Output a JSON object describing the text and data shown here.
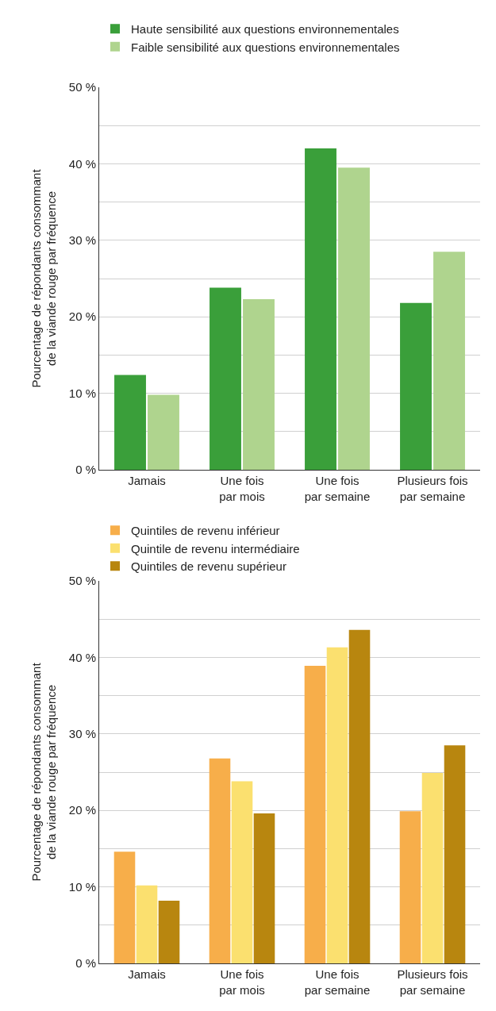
{
  "chart_data": [
    {
      "type": "bar",
      "ylabel": "Pourcentage de répondants consommant\nde la viande rouge par fréquence",
      "categories": [
        "Jamais",
        "Une fois\npar mois",
        "Une fois\npar semaine",
        "Plusieurs fois\npar semaine"
      ],
      "series": [
        {
          "name": "Haute sensibilité aux questions environnementales",
          "color": "#3a9f3a",
          "values": [
            12.4,
            23.8,
            42.0,
            21.8
          ]
        },
        {
          "name": "Faible sensibilité aux questions environnementales",
          "color": "#afd48e",
          "values": [
            9.8,
            22.3,
            39.5,
            28.5
          ]
        }
      ],
      "ylim": [
        0,
        50
      ],
      "yticks": [
        {
          "value": 0,
          "label": "0 %"
        },
        {
          "value": 5,
          "label": null
        },
        {
          "value": 10,
          "label": "10 %"
        },
        {
          "value": 15,
          "label": null
        },
        {
          "value": 20,
          "label": "20 %"
        },
        {
          "value": 25,
          "label": null
        },
        {
          "value": 30,
          "label": "30 %"
        },
        {
          "value": 35,
          "label": null
        },
        {
          "value": 40,
          "label": "40 %"
        },
        {
          "value": 45,
          "label": null
        },
        {
          "value": 50,
          "label": "50 %"
        }
      ],
      "grid": "y",
      "legend": "top left"
    },
    {
      "type": "bar",
      "ylabel": "Pourcentage de répondants consommant\nde la viande rouge par fréquence",
      "categories": [
        "Jamais",
        "Une fois\npar mois",
        "Une fois\npar semaine",
        "Plusieurs fois\npar semaine"
      ],
      "series": [
        {
          "name": "Quintiles de revenu inférieur",
          "color": "#f7ae4a",
          "values": [
            14.6,
            26.8,
            38.9,
            19.9
          ]
        },
        {
          "name": "Quintile de revenu intermédiaire",
          "color": "#fbe06f",
          "values": [
            10.2,
            23.8,
            41.3,
            24.9
          ]
        },
        {
          "name": "Quintiles de revenu supérieur",
          "color": "#b8860f",
          "values": [
            8.2,
            19.6,
            43.6,
            28.5
          ]
        }
      ],
      "ylim": [
        0,
        50
      ],
      "yticks": [
        {
          "value": 0,
          "label": "0 %"
        },
        {
          "value": 5,
          "label": null
        },
        {
          "value": 10,
          "label": "10 %"
        },
        {
          "value": 15,
          "label": null
        },
        {
          "value": 20,
          "label": "20 %"
        },
        {
          "value": 25,
          "label": null
        },
        {
          "value": 30,
          "label": "30 %"
        },
        {
          "value": 35,
          "label": null
        },
        {
          "value": 40,
          "label": "40 %"
        },
        {
          "value": 45,
          "label": null
        },
        {
          "value": 50,
          "label": "50 %"
        }
      ],
      "grid": "y",
      "legend": "top left"
    }
  ]
}
